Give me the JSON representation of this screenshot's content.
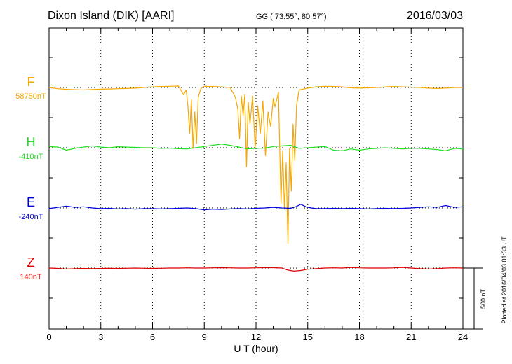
{
  "header": {
    "station": "Dixon Island (DIK)  [AARI]",
    "coords": "GG ( 73.55°,  80.57°)",
    "date": "2016/03/03"
  },
  "plotted_note": "Plotted at 2016/04/03 01:33 UT",
  "scale_label": "500 nT",
  "chart_data": {
    "type": "line",
    "title": "",
    "xlabel": "U T (hour)",
    "ylabel": "",
    "xlim": [
      0,
      24
    ],
    "xticks": [
      0,
      3,
      6,
      9,
      12,
      15,
      18,
      21,
      24
    ],
    "grid": true,
    "scale_bar_nT": 500,
    "series": [
      {
        "name": "F",
        "baseline_label": "58750nT",
        "color": "#f5a800",
        "baseline_nT": 58750,
        "points": [
          [
            0,
            0
          ],
          [
            0.5,
            -10
          ],
          [
            1,
            -15
          ],
          [
            1.5,
            -18
          ],
          [
            2,
            -20
          ],
          [
            2.5,
            -16
          ],
          [
            3,
            -14
          ],
          [
            3.5,
            -12
          ],
          [
            4,
            -10
          ],
          [
            4.5,
            -8
          ],
          [
            5,
            -5
          ],
          [
            5.5,
            0
          ],
          [
            6,
            5
          ],
          [
            6.5,
            8
          ],
          [
            7,
            10
          ],
          [
            7.5,
            12
          ],
          [
            7.8,
            -60
          ],
          [
            7.95,
            -20
          ],
          [
            8.05,
            -150
          ],
          [
            8.15,
            -380
          ],
          [
            8.25,
            -100
          ],
          [
            8.35,
            -500
          ],
          [
            8.45,
            -200
          ],
          [
            8.55,
            -460
          ],
          [
            8.65,
            -80
          ],
          [
            8.8,
            -10
          ],
          [
            9,
            10
          ],
          [
            9.5,
            8
          ],
          [
            10,
            5
          ],
          [
            10.5,
            0
          ],
          [
            10.8,
            -80
          ],
          [
            10.95,
            -180
          ],
          [
            11.05,
            -420
          ],
          [
            11.15,
            -70
          ],
          [
            11.25,
            -230
          ],
          [
            11.35,
            -60
          ],
          [
            11.45,
            -650
          ],
          [
            11.55,
            -120
          ],
          [
            11.65,
            -300
          ],
          [
            11.8,
            -70
          ],
          [
            11.95,
            -500
          ],
          [
            12.1,
            -150
          ],
          [
            12.25,
            -380
          ],
          [
            12.4,
            -110
          ],
          [
            12.55,
            -560
          ],
          [
            12.7,
            -200
          ],
          [
            12.85,
            -320
          ],
          [
            13.0,
            -90
          ],
          [
            13.1,
            -160
          ],
          [
            13.3,
            -40
          ],
          [
            13.45,
            -950
          ],
          [
            13.55,
            -520
          ],
          [
            13.65,
            -1000
          ],
          [
            13.75,
            -620
          ],
          [
            13.85,
            -1280
          ],
          [
            13.95,
            -500
          ],
          [
            14.05,
            -850
          ],
          [
            14.15,
            -300
          ],
          [
            14.25,
            -600
          ],
          [
            14.35,
            -150
          ],
          [
            14.5,
            -20
          ],
          [
            15,
            -5
          ],
          [
            15.5,
            5
          ],
          [
            16,
            10
          ],
          [
            16.5,
            8
          ],
          [
            17,
            5
          ],
          [
            17.5,
            -3
          ],
          [
            18,
            -5
          ],
          [
            18.5,
            -3
          ],
          [
            19,
            0
          ],
          [
            19.5,
            5
          ],
          [
            20,
            8
          ],
          [
            20.5,
            5
          ],
          [
            21,
            3
          ],
          [
            21.5,
            0
          ],
          [
            22,
            -5
          ],
          [
            22.5,
            -8
          ],
          [
            23,
            -5
          ],
          [
            23.5,
            0
          ],
          [
            24,
            0
          ]
        ]
      },
      {
        "name": "H",
        "baseline_label": "-410nT",
        "color": "#22dd22",
        "baseline_nT": -410,
        "points": [
          [
            0,
            10
          ],
          [
            0.5,
            5
          ],
          [
            1,
            -20
          ],
          [
            1.5,
            -5
          ],
          [
            2,
            5
          ],
          [
            2.5,
            15
          ],
          [
            3,
            5
          ],
          [
            3.5,
            0
          ],
          [
            4,
            8
          ],
          [
            4.5,
            5
          ],
          [
            5,
            3
          ],
          [
            5.5,
            0
          ],
          [
            6,
            0
          ],
          [
            6.5,
            -5
          ],
          [
            7,
            -3
          ],
          [
            7.5,
            -8
          ],
          [
            8,
            -10
          ],
          [
            8.5,
            0
          ],
          [
            9,
            10
          ],
          [
            9.5,
            20
          ],
          [
            10,
            30
          ],
          [
            10.5,
            20
          ],
          [
            11,
            5
          ],
          [
            11.5,
            -10
          ],
          [
            12,
            -5
          ],
          [
            12.5,
            -3
          ],
          [
            13,
            10
          ],
          [
            13.5,
            15
          ],
          [
            14,
            20
          ],
          [
            14.5,
            -5
          ],
          [
            15,
            0
          ],
          [
            15.5,
            5
          ],
          [
            16,
            10
          ],
          [
            16.5,
            -20
          ],
          [
            17,
            -25
          ],
          [
            17.5,
            -10
          ],
          [
            18,
            -20
          ],
          [
            18.5,
            -10
          ],
          [
            19,
            -5
          ],
          [
            19.5,
            0
          ],
          [
            20,
            -5
          ],
          [
            20.5,
            -10
          ],
          [
            21,
            -5
          ],
          [
            21.5,
            -5
          ],
          [
            22,
            -10
          ],
          [
            22.5,
            -15
          ],
          [
            23,
            -25
          ],
          [
            23.5,
            -5
          ],
          [
            24,
            -10
          ]
        ]
      },
      {
        "name": "E",
        "baseline_label": "-240nT",
        "color": "#0000dd",
        "baseline_nT": -240,
        "points": [
          [
            0,
            -5
          ],
          [
            0.5,
            5
          ],
          [
            1,
            15
          ],
          [
            1.5,
            5
          ],
          [
            2,
            10
          ],
          [
            2.5,
            0
          ],
          [
            3,
            -5
          ],
          [
            3.5,
            -3
          ],
          [
            4,
            -8
          ],
          [
            4.5,
            -5
          ],
          [
            5,
            -10
          ],
          [
            5.5,
            -5
          ],
          [
            6,
            -5
          ],
          [
            6.5,
            -8
          ],
          [
            7,
            -5
          ],
          [
            7.5,
            -3
          ],
          [
            8,
            0
          ],
          [
            8.5,
            -5
          ],
          [
            9,
            -15
          ],
          [
            9.5,
            -10
          ],
          [
            10,
            -12
          ],
          [
            10.5,
            -8
          ],
          [
            11,
            -5
          ],
          [
            11.5,
            -8
          ],
          [
            12,
            -3
          ],
          [
            12.5,
            0
          ],
          [
            13,
            5
          ],
          [
            13.5,
            0
          ],
          [
            14,
            -3
          ],
          [
            14.3,
            10
          ],
          [
            14.6,
            30
          ],
          [
            14.9,
            10
          ],
          [
            15.2,
            0
          ],
          [
            15.5,
            -5
          ],
          [
            16,
            -5
          ],
          [
            16.5,
            -3
          ],
          [
            17,
            -5
          ],
          [
            17.5,
            -3
          ],
          [
            18,
            -5
          ],
          [
            18.5,
            -8
          ],
          [
            19,
            -5
          ],
          [
            19.5,
            -3
          ],
          [
            20,
            -5
          ],
          [
            20.5,
            -3
          ],
          [
            21,
            0
          ],
          [
            21.5,
            5
          ],
          [
            22,
            10
          ],
          [
            22.5,
            5
          ],
          [
            23,
            20
          ],
          [
            23.5,
            5
          ],
          [
            24,
            10
          ]
        ]
      },
      {
        "name": "Z",
        "baseline_label": "140nT",
        "color": "#dd0000",
        "baseline_nT": 140,
        "points": [
          [
            0,
            0
          ],
          [
            0.5,
            -3
          ],
          [
            1,
            -8
          ],
          [
            1.5,
            -5
          ],
          [
            2,
            -3
          ],
          [
            2.5,
            -5
          ],
          [
            3,
            -3
          ],
          [
            3.5,
            -2
          ],
          [
            4,
            -3
          ],
          [
            4.5,
            -2
          ],
          [
            5,
            0
          ],
          [
            5.5,
            -2
          ],
          [
            6,
            -3
          ],
          [
            6.5,
            -2
          ],
          [
            7,
            0
          ],
          [
            7.5,
            0
          ],
          [
            8,
            2
          ],
          [
            8.5,
            0
          ],
          [
            9,
            0
          ],
          [
            9.5,
            2
          ],
          [
            10,
            3
          ],
          [
            10.5,
            2
          ],
          [
            11,
            0
          ],
          [
            11.5,
            0
          ],
          [
            12,
            2
          ],
          [
            12.5,
            3
          ],
          [
            13,
            3
          ],
          [
            13.5,
            0
          ],
          [
            13.8,
            -15
          ],
          [
            14.2,
            -25
          ],
          [
            14.6,
            -20
          ],
          [
            15,
            -10
          ],
          [
            15.5,
            -5
          ],
          [
            16,
            0
          ],
          [
            16.5,
            2
          ],
          [
            17,
            0
          ],
          [
            17.5,
            5
          ],
          [
            18,
            2
          ],
          [
            18.5,
            0
          ],
          [
            19,
            0
          ],
          [
            19.5,
            0
          ],
          [
            20,
            2
          ],
          [
            20.5,
            5
          ],
          [
            21,
            0
          ],
          [
            21.5,
            -5
          ],
          [
            22,
            -8
          ],
          [
            22.5,
            -5
          ],
          [
            23,
            0
          ],
          [
            23.5,
            2
          ],
          [
            24,
            0
          ]
        ]
      }
    ]
  }
}
